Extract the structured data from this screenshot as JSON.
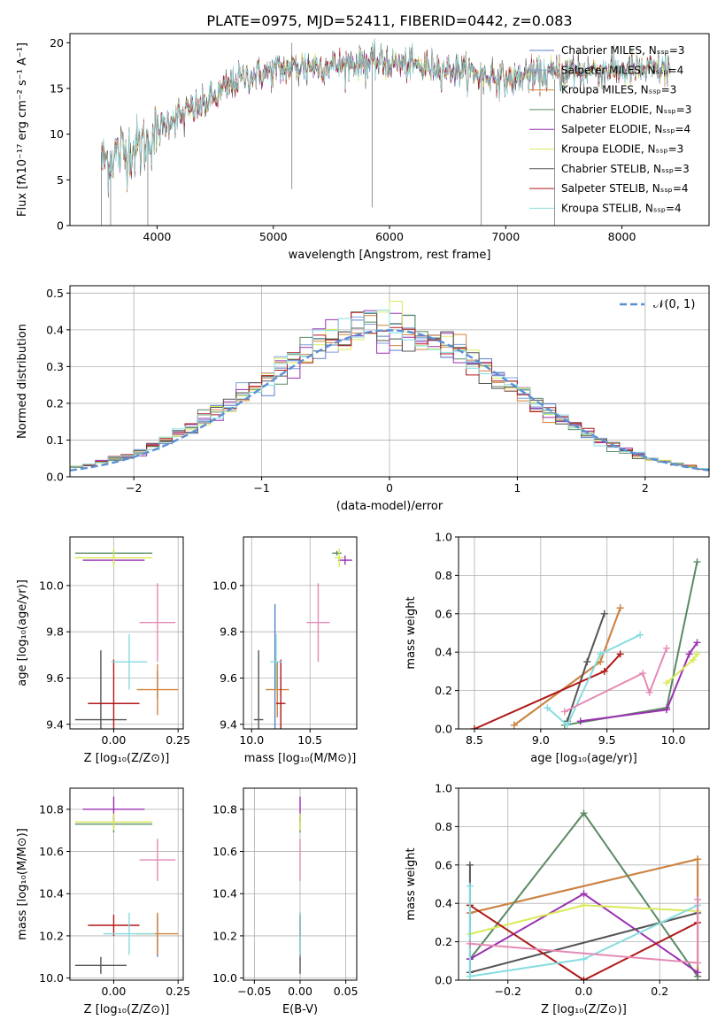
{
  "figure_title": "PLATE=0975, MJD=52411, FIBERID=0442, z=0.083",
  "colors": {
    "Chabrier MILES": "#5b7fc7",
    "Salpeter MILES": "#7f9ed8",
    "Kroupa MILES": "#d4843b",
    "Chabrier ELODIE": "#5a8a62",
    "Salpeter ELODIE": "#9b30b0",
    "Kroupa ELODIE": "#d9ea5a",
    "Chabrier STELIB": "#555555",
    "Salpeter STELIB": "#b01818",
    "Kroupa STELIB": "#86dde0",
    "normal": "#5b8fd6",
    "pink": "#e48ab5",
    "orange": "#d4843b"
  },
  "chart_data": [
    {
      "id": "spectrum",
      "type": "line",
      "title": "PLATE=0975, MJD=52411, FIBERID=0442, z=0.083",
      "xlabel": "wavelength [Angstrom, rest frame]",
      "ylabel": "Flux [fλ10⁻¹⁷ erg cm⁻² s⁻¹ A⁻¹]",
      "xlim": [
        3250,
        8750
      ],
      "ylim": [
        0,
        21
      ],
      "xticks": [
        4000,
        5000,
        6000,
        7000,
        8000
      ],
      "yticks": [
        0,
        5,
        10,
        15,
        20
      ],
      "legend_position": "top-right",
      "legend": [
        "Chabrier MILES, N_SSP=3",
        "Salpeter MILES, N_SSP=4",
        "Kroupa MILES, N_SSP=3",
        "Chabrier ELODIE, N_SSP=3",
        "Salpeter ELODIE, N_SSP=4",
        "Kroupa ELODIE, N_SSP=3",
        "Chabrier STELIB, N_SSP=3",
        "Salpeter STELIB, N_SSP=4",
        "Kroupa STELIB, N_SSP=4"
      ],
      "continuum": [
        [
          3520,
          7
        ],
        [
          3700,
          8
        ],
        [
          3900,
          9
        ],
        [
          4000,
          10.5
        ],
        [
          4100,
          11.5
        ],
        [
          4300,
          12.5
        ],
        [
          4500,
          14
        ],
        [
          4700,
          16
        ],
        [
          5000,
          17
        ],
        [
          5300,
          17.5
        ],
        [
          5600,
          17.5
        ],
        [
          5900,
          18
        ],
        [
          6200,
          17.5
        ],
        [
          6600,
          17
        ],
        [
          7000,
          16
        ],
        [
          7300,
          16.5
        ],
        [
          7600,
          17
        ],
        [
          8000,
          17
        ],
        [
          8400,
          17
        ]
      ],
      "data_range": [
        3520,
        8420
      ]
    },
    {
      "id": "residuals",
      "type": "histogram",
      "xlabel": "(data-model)/error",
      "ylabel": "Normed distribution",
      "xlim": [
        -2.5,
        2.5
      ],
      "ylim": [
        0,
        0.52
      ],
      "xticks": [
        -2,
        -1,
        0,
        1,
        2
      ],
      "yticks": [
        0.0,
        0.1,
        0.2,
        0.3,
        0.4,
        0.5
      ],
      "grid": true,
      "legend_position": "top-right",
      "legend": [
        "𝒩(0, 1)"
      ],
      "bin_width": 0.1
    },
    {
      "id": "age_vs_Z",
      "type": "scatter",
      "xlabel": "Z [log₁₀(Z/Z⊙)]",
      "ylabel": "age  [log₁₀(age/yr)]",
      "xlim": [
        -0.17,
        0.27
      ],
      "ylim": [
        9.38,
        10.21
      ],
      "xticks": [
        0.0,
        0.25
      ],
      "yticks": [
        9.4,
        9.6,
        9.8,
        10.0
      ],
      "grid": true,
      "points": [
        {
          "color": "#5b7fc7",
          "x": 0.17,
          "xe": 0.0,
          "y": 9.57,
          "ye": 0.06
        },
        {
          "color": "#e48ab5",
          "x": 0.17,
          "xe": 0.07,
          "y": 9.84,
          "ye": 0.17
        },
        {
          "color": "#d4843b",
          "x": 0.17,
          "xe": 0.08,
          "y": 9.55,
          "ye": 0.11
        },
        {
          "color": "#5a8a62",
          "x": 0.0,
          "xe": 0.15,
          "y": 10.14,
          "ye": 0.01
        },
        {
          "color": "#9b30b0",
          "x": 0.0,
          "xe": 0.12,
          "y": 10.11,
          "ye": 0.02
        },
        {
          "color": "#d9ea5a",
          "x": 0.0,
          "xe": 0.15,
          "y": 10.12,
          "ye": 0.04
        },
        {
          "color": "#555555",
          "x": -0.05,
          "xe": 0.1,
          "y": 9.42,
          "ye": 0.3
        },
        {
          "color": "#b01818",
          "x": 0.0,
          "xe": 0.1,
          "y": 9.49,
          "ye": 0.19
        },
        {
          "color": "#86dde0",
          "x": 0.06,
          "xe": 0.07,
          "y": 9.67,
          "ye": 0.12
        }
      ]
    },
    {
      "id": "age_vs_mass",
      "type": "scatter",
      "xlabel": "mass [log₁₀(M/M⊙)]",
      "ylabel": "",
      "xlim": [
        9.93,
        10.9
      ],
      "ylim": [
        9.38,
        10.21
      ],
      "xticks": [
        10.0,
        10.5
      ],
      "yticks": [
        9.4,
        9.6,
        9.8,
        10.0
      ],
      "grid": true,
      "points": [
        {
          "color": "#5b7fc7",
          "x": 10.2,
          "xe": 0.0,
          "y": 9.62,
          "ye": 0.3
        },
        {
          "color": "#e48ab5",
          "x": 10.57,
          "xe": 0.1,
          "y": 9.84,
          "ye": 0.17
        },
        {
          "color": "#d4843b",
          "x": 10.22,
          "xe": 0.1,
          "y": 9.55,
          "ye": 0.12
        },
        {
          "color": "#5a8a62",
          "x": 10.73,
          "xe": 0.04,
          "y": 10.14,
          "ye": 0.01
        },
        {
          "color": "#9b30b0",
          "x": 10.8,
          "xe": 0.06,
          "y": 10.11,
          "ye": 0.02
        },
        {
          "color": "#d9ea5a",
          "x": 10.75,
          "xe": 0.04,
          "y": 10.12,
          "ye": 0.04
        },
        {
          "color": "#555555",
          "x": 10.06,
          "xe": 0.04,
          "y": 9.42,
          "ye": 0.3
        },
        {
          "color": "#b01818",
          "x": 10.25,
          "xe": 0.04,
          "y": 9.49,
          "ye": 0.19
        },
        {
          "color": "#86dde0",
          "x": 10.21,
          "xe": 0.05,
          "y": 9.67,
          "ye": 0.12
        }
      ]
    },
    {
      "id": "weight_vs_age",
      "type": "line",
      "xlabel": "age  [log₁₀(age/yr)]",
      "ylabel": "mass weight",
      "xlim": [
        8.38,
        10.27
      ],
      "ylim": [
        0,
        1.0
      ],
      "xticks": [
        8.5,
        9.0,
        9.5,
        10.0
      ],
      "yticks": [
        0.0,
        0.2,
        0.4,
        0.6,
        0.8,
        1.0
      ],
      "grid": true,
      "series": [
        {
          "color": "#5b7fc7",
          "x": [
            8.8,
            9.45,
            9.6
          ],
          "y": [
            0.02,
            0.35,
            0.63
          ]
        },
        {
          "color": "#d4843b",
          "x": [
            8.8,
            9.45,
            9.6
          ],
          "y": [
            0.02,
            0.35,
            0.63
          ]
        },
        {
          "color": "#5a8a62",
          "x": [
            9.18,
            9.95,
            10.18
          ],
          "y": [
            0.02,
            0.11,
            0.87
          ]
        },
        {
          "color": "#9b30b0",
          "x": [
            9.3,
            9.95,
            10.12,
            10.18
          ],
          "y": [
            0.04,
            0.1,
            0.39,
            0.45
          ]
        },
        {
          "color": "#d9ea5a",
          "x": [
            9.95,
            10.15,
            10.18
          ],
          "y": [
            0.24,
            0.36,
            0.39
          ]
        },
        {
          "color": "#555555",
          "x": [
            9.2,
            9.35,
            9.48
          ],
          "y": [
            0.04,
            0.35,
            0.6
          ]
        },
        {
          "color": "#b01818",
          "x": [
            8.5,
            9.48,
            9.6
          ],
          "y": [
            0.0,
            0.3,
            0.39
          ]
        },
        {
          "color": "#86dde0",
          "x": [
            9.05,
            9.2,
            9.45,
            9.75
          ],
          "y": [
            0.11,
            0.02,
            0.39,
            0.49
          ]
        },
        {
          "color": "#e48ab5",
          "x": [
            9.18,
            9.77,
            9.82,
            9.95
          ],
          "y": [
            0.09,
            0.29,
            0.19,
            0.42
          ]
        }
      ]
    },
    {
      "id": "mass_vs_Z",
      "type": "scatter",
      "xlabel": "Z [log₁₀(Z/Z⊙)]",
      "ylabel": "mass [log₁₀(M/M⊙)]",
      "xlim": [
        -0.17,
        0.27
      ],
      "ylim": [
        9.99,
        10.9
      ],
      "xticks": [
        0.0,
        0.25
      ],
      "yticks": [
        10.0,
        10.2,
        10.4,
        10.6,
        10.8
      ],
      "grid": true,
      "points": [
        {
          "color": "#5b7fc7",
          "x": 0.17,
          "xe": 0.0,
          "y": 10.2,
          "ye": 0.1
        },
        {
          "color": "#e48ab5",
          "x": 0.17,
          "xe": 0.07,
          "y": 10.56,
          "ye": 0.1
        },
        {
          "color": "#d4843b",
          "x": 0.17,
          "xe": 0.08,
          "y": 10.21,
          "ye": 0.1
        },
        {
          "color": "#5a8a62",
          "x": 0.0,
          "xe": 0.15,
          "y": 10.73,
          "ye": 0.04
        },
        {
          "color": "#9b30b0",
          "x": 0.0,
          "xe": 0.12,
          "y": 10.8,
          "ye": 0.06
        },
        {
          "color": "#d9ea5a",
          "x": 0.0,
          "xe": 0.15,
          "y": 10.74,
          "ye": 0.04
        },
        {
          "color": "#555555",
          "x": -0.05,
          "xe": 0.1,
          "y": 10.06,
          "ye": 0.04
        },
        {
          "color": "#b01818",
          "x": 0.0,
          "xe": 0.1,
          "y": 10.25,
          "ye": 0.05
        },
        {
          "color": "#86dde0",
          "x": 0.06,
          "xe": 0.1,
          "y": 10.21,
          "ye": 0.1
        }
      ]
    },
    {
      "id": "mass_vs_ebv",
      "type": "scatter",
      "xlabel": "E(B-V)",
      "ylabel": "",
      "xlim": [
        -0.062,
        0.062
      ],
      "ylim": [
        9.99,
        10.9
      ],
      "xticks": [
        -0.05,
        0.0,
        0.05
      ],
      "yticks": [
        10.0,
        10.2,
        10.4,
        10.6,
        10.8
      ],
      "grid": true,
      "points": [
        {
          "color": "#5b7fc7",
          "x": 0.0,
          "xe": 0.0,
          "y": 10.2,
          "ye": 0.1
        },
        {
          "color": "#e48ab5",
          "x": 0.0,
          "xe": 0.0,
          "y": 10.56,
          "ye": 0.1
        },
        {
          "color": "#d4843b",
          "x": 0.0,
          "xe": 0.0,
          "y": 10.21,
          "ye": 0.1
        },
        {
          "color": "#5a8a62",
          "x": 0.0,
          "xe": 0.0,
          "y": 10.73,
          "ye": 0.04
        },
        {
          "color": "#9b30b0",
          "x": 0.0,
          "xe": 0.0,
          "y": 10.8,
          "ye": 0.06
        },
        {
          "color": "#d9ea5a",
          "x": 0.0,
          "xe": 0.0,
          "y": 10.74,
          "ye": 0.04
        },
        {
          "color": "#555555",
          "x": 0.0,
          "xe": 0.0,
          "y": 10.06,
          "ye": 0.04
        },
        {
          "color": "#b01818",
          "x": 0.0,
          "xe": 0.0,
          "y": 10.25,
          "ye": 0.05
        },
        {
          "color": "#86dde0",
          "x": 0.0,
          "xe": 0.0,
          "y": 10.21,
          "ye": 0.1
        }
      ]
    },
    {
      "id": "weight_vs_Z",
      "type": "line",
      "xlabel": "Z [log₁₀(Z/Z⊙)]",
      "ylabel": "mass weight",
      "xlim": [
        -0.33,
        0.33
      ],
      "ylim": [
        0,
        1.0
      ],
      "xticks": [
        -0.2,
        0.0,
        0.2
      ],
      "yticks": [
        0.0,
        0.2,
        0.4,
        0.6,
        0.8,
        1.0
      ],
      "grid": true,
      "series": [
        {
          "color": "#5b7fc7",
          "x": [
            -0.3,
            0.3,
            0.3
          ],
          "y": [
            0.35,
            0.63,
            0.02
          ]
        },
        {
          "color": "#d4843b",
          "x": [
            -0.3,
            0.3,
            0.3
          ],
          "y": [
            0.35,
            0.63,
            0.02
          ]
        },
        {
          "color": "#5a8a62",
          "x": [
            -0.3,
            0.0,
            0.3
          ],
          "y": [
            0.11,
            0.87,
            0.02
          ]
        },
        {
          "color": "#9b30b0",
          "x": [
            -0.3,
            0.0,
            0.3
          ],
          "y": [
            0.11,
            0.45,
            0.04
          ]
        },
        {
          "color": "#d9ea5a",
          "x": [
            -0.3,
            0.0,
            0.3
          ],
          "y": [
            0.24,
            0.39,
            0.36
          ]
        },
        {
          "color": "#555555",
          "x": [
            -0.3,
            -0.3,
            0.3
          ],
          "y": [
            0.6,
            0.04,
            0.35
          ]
        },
        {
          "color": "#b01818",
          "x": [
            -0.3,
            0.0,
            0.3
          ],
          "y": [
            0.39,
            0.0,
            0.3
          ]
        },
        {
          "color": "#86dde0",
          "x": [
            -0.3,
            -0.3,
            0.0,
            0.3
          ],
          "y": [
            0.49,
            0.02,
            0.11,
            0.39
          ]
        },
        {
          "color": "#e48ab5",
          "x": [
            -0.3,
            0.3,
            0.3
          ],
          "y": [
            0.19,
            0.09,
            0.42
          ]
        }
      ]
    }
  ]
}
